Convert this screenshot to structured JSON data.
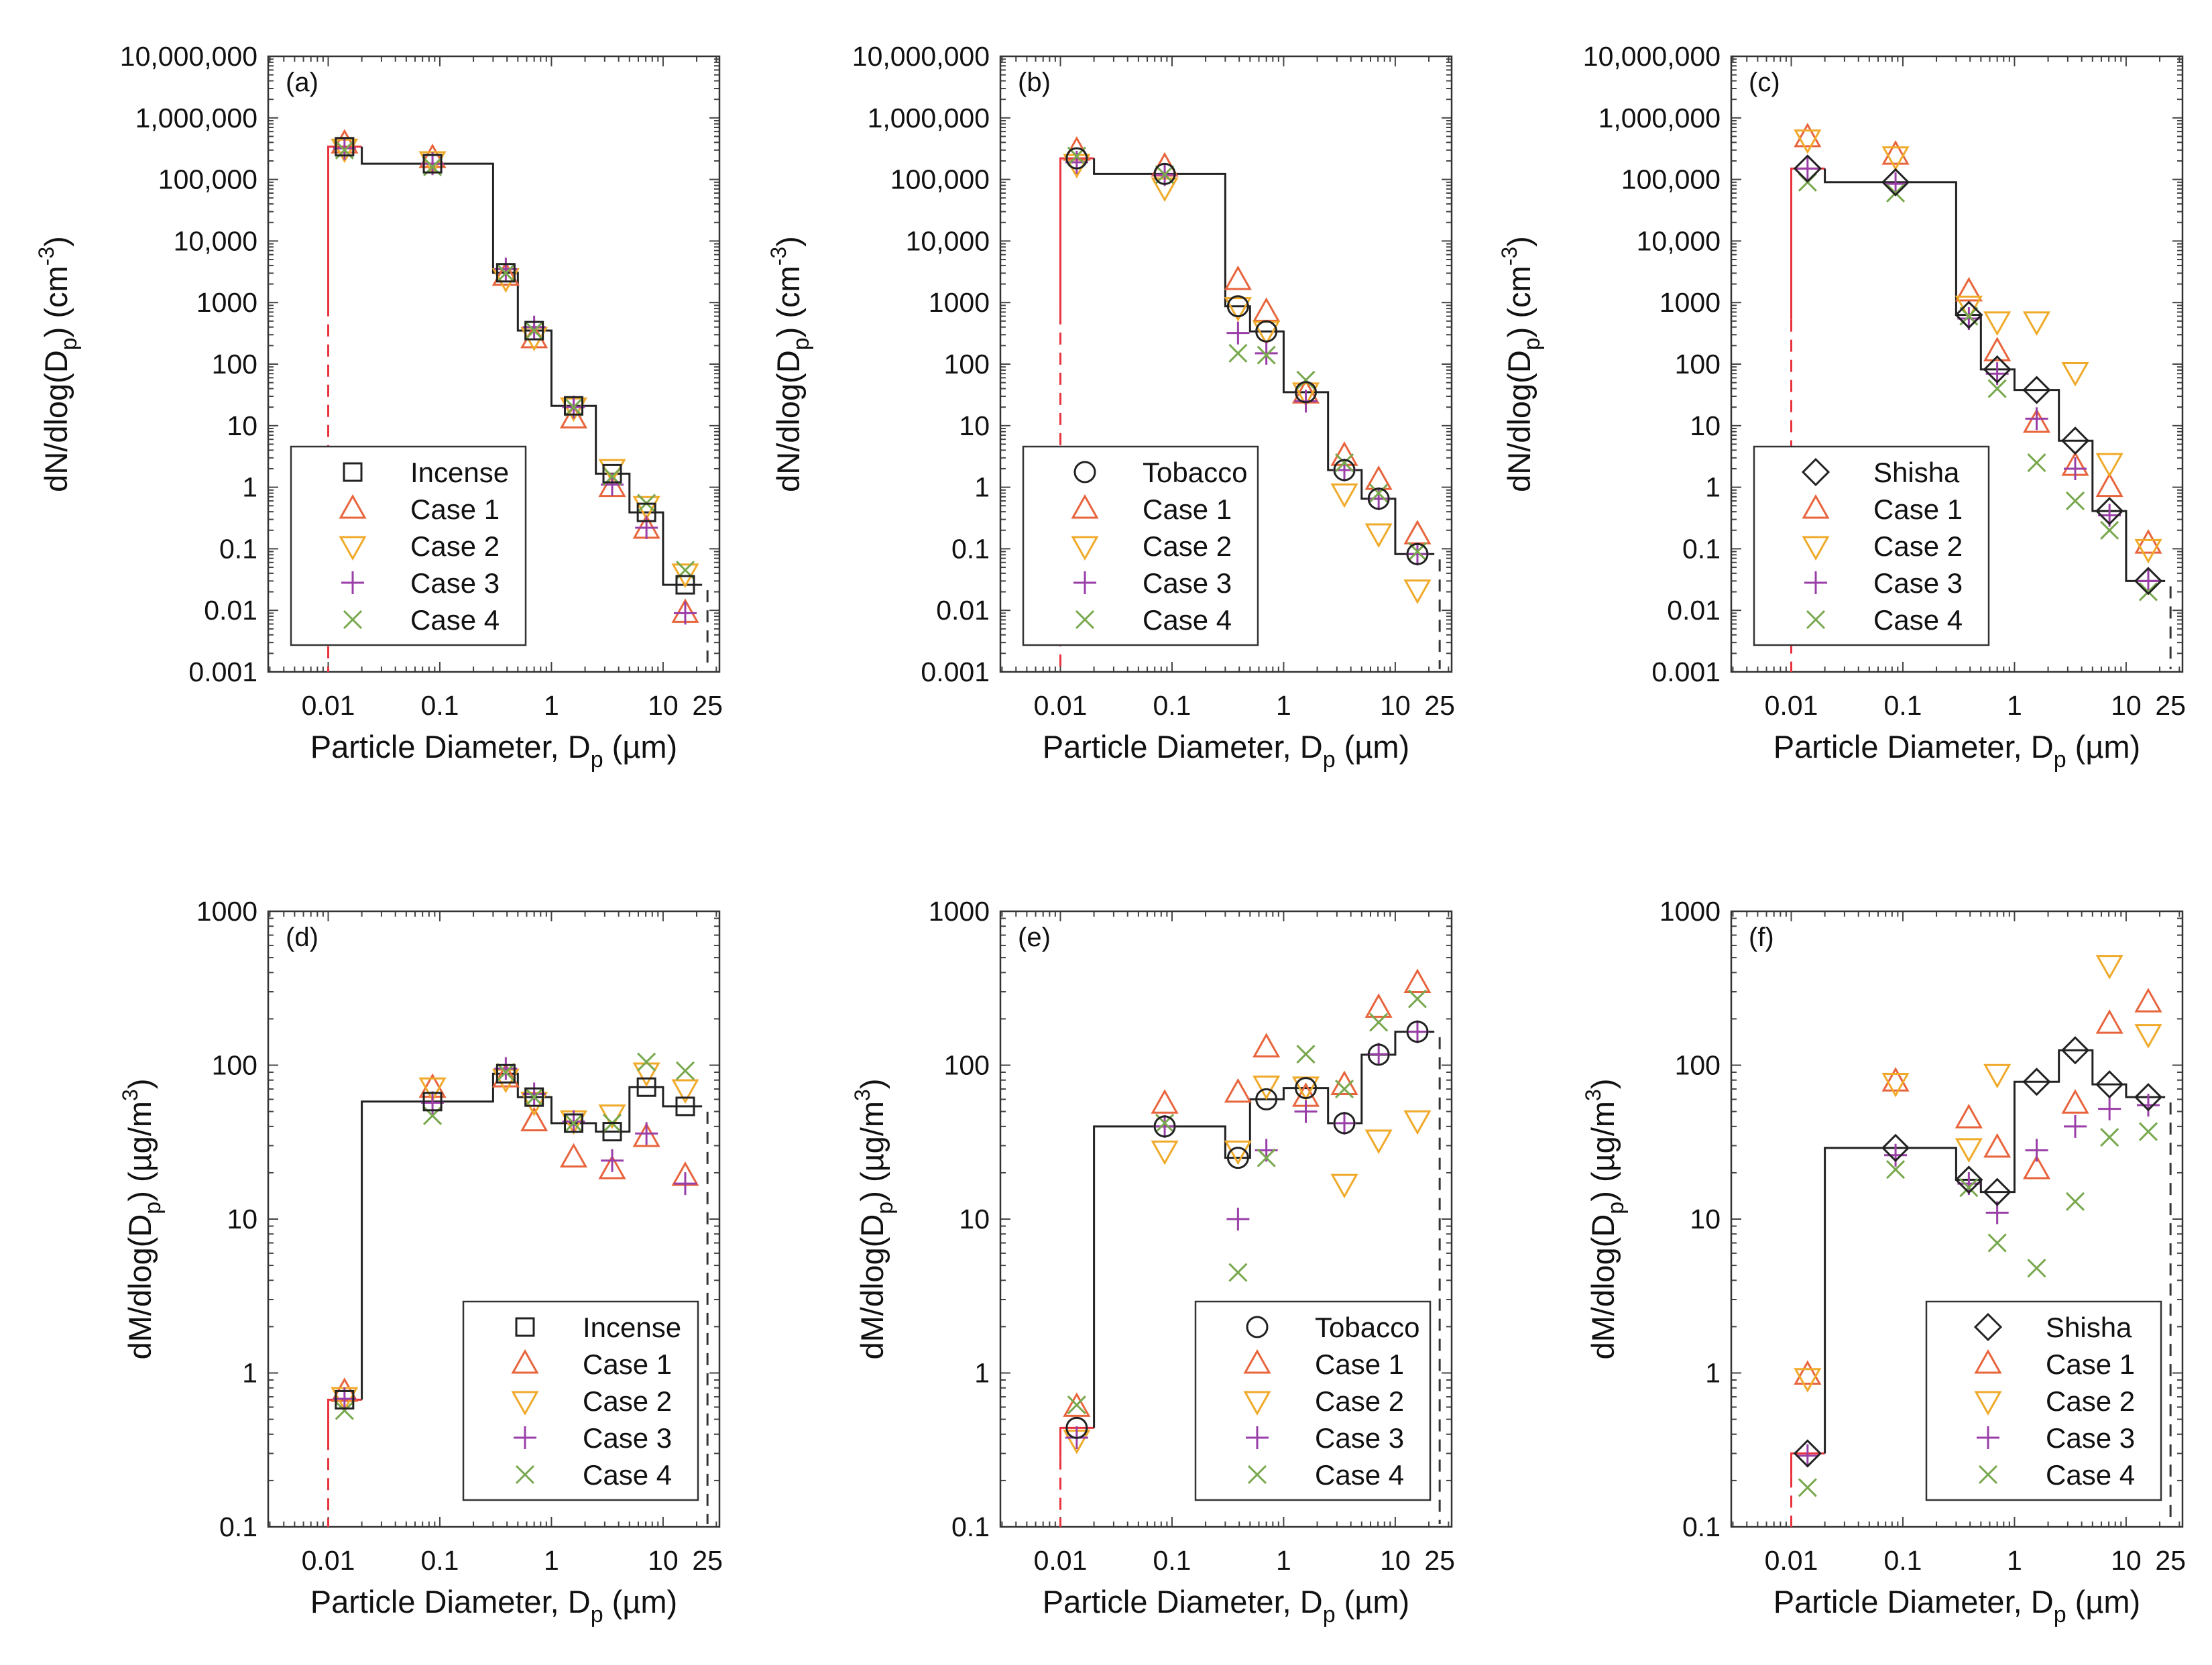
{
  "series_styles": {
    "reference_color": "#222222",
    "Case 1": {
      "marker": "triangle-up",
      "color": "#e8643c"
    },
    "Case 2": {
      "marker": "triangle-down",
      "color": "#f0aa2a"
    },
    "Case 3": {
      "marker": "plus",
      "color": "#9a3ea8"
    },
    "Case 4": {
      "marker": "x",
      "color": "#78a84e"
    },
    "first_bin_color": "#e8333d"
  },
  "chart_data": [
    {
      "panel": "(a)",
      "type": "scatter",
      "quantity": "number",
      "ylabel": {
        "a": "dN/dlog(D",
        "sub": "p",
        "b": ") (cm",
        "sup": "-3",
        "c": ")"
      },
      "xlabel": {
        "a": "Particle Diameter, D",
        "sub": "p",
        "b": " (µm)"
      },
      "xlim": [
        0.0029,
        32
      ],
      "ylim": [
        0.001,
        10000000
      ],
      "xticks": [
        {
          "v": 0.01,
          "label": "0.01"
        },
        {
          "v": 0.1,
          "label": "0.1"
        },
        {
          "v": 1,
          "label": "1"
        },
        {
          "v": 10,
          "label": "10"
        },
        {
          "v": 25,
          "label": "25"
        }
      ],
      "yticks": [
        {
          "v": 10000000,
          "label": "10,000,000"
        },
        {
          "v": 1000000,
          "label": "1,000,000"
        },
        {
          "v": 100000,
          "label": "100,000"
        },
        {
          "v": 10000,
          "label": "10,000"
        },
        {
          "v": 1000,
          "label": "1000"
        },
        {
          "v": 100,
          "label": "100"
        },
        {
          "v": 10,
          "label": "10"
        },
        {
          "v": 1,
          "label": "1"
        },
        {
          "v": 0.1,
          "label": "0.1"
        },
        {
          "v": 0.01,
          "label": "0.01"
        },
        {
          "v": 0.001,
          "label": "0.001"
        }
      ],
      "bin_edges": [
        0.01,
        0.02,
        0.3,
        0.5,
        1,
        2.5,
        5,
        10,
        25
      ],
      "x": [
        0.014,
        0.086,
        0.39,
        0.7,
        1.58,
        3.5,
        7.1,
        15.8
      ],
      "legend": "bottom-left",
      "series": [
        {
          "name": "Incense",
          "marker": "square",
          "values": [
            340000,
            180000,
            3050,
            350,
            21,
            1.66,
            0.39,
            0.026
          ]
        },
        {
          "name": "Case 1",
          "values": [
            380000,
            220000,
            2700,
            260,
            13,
            1.0,
            0.21,
            0.009
          ]
        },
        {
          "name": "Case 2",
          "values": [
            320000,
            200000,
            2500,
            280,
            20,
            2.0,
            0.5,
            0.04
          ]
        },
        {
          "name": "Case 3",
          "values": [
            320000,
            180000,
            3500,
            400,
            20,
            1.1,
            0.22,
            0.009
          ]
        },
        {
          "name": "Case 4",
          "values": [
            300000,
            160000,
            3000,
            350,
            20,
            1.5,
            0.55,
            0.045
          ]
        }
      ]
    },
    {
      "panel": "(b)",
      "type": "scatter",
      "quantity": "number",
      "ylabel": {
        "a": "dN/dlog(D",
        "sub": "p",
        "b": ") (cm",
        "sup": "-3",
        "c": ")"
      },
      "xlabel": {
        "a": "Particle Diameter, D",
        "sub": "p",
        "b": " (µm)"
      },
      "xlim": [
        0.0029,
        32
      ],
      "ylim": [
        0.001,
        10000000
      ],
      "xticks": [
        {
          "v": 0.01,
          "label": "0.01"
        },
        {
          "v": 0.1,
          "label": "0.1"
        },
        {
          "v": 1,
          "label": "1"
        },
        {
          "v": 10,
          "label": "10"
        },
        {
          "v": 25,
          "label": "25"
        }
      ],
      "yticks": [
        {
          "v": 10000000,
          "label": "10,000,000"
        },
        {
          "v": 1000000,
          "label": "1,000,000"
        },
        {
          "v": 100000,
          "label": "100,000"
        },
        {
          "v": 10000,
          "label": "10,000"
        },
        {
          "v": 1000,
          "label": "1000"
        },
        {
          "v": 100,
          "label": "100"
        },
        {
          "v": 10,
          "label": "10"
        },
        {
          "v": 1,
          "label": "1"
        },
        {
          "v": 0.1,
          "label": "0.1"
        },
        {
          "v": 0.01,
          "label": "0.01"
        },
        {
          "v": 0.001,
          "label": "0.001"
        }
      ],
      "bin_edges": [
        0.01,
        0.02,
        0.3,
        0.5,
        1,
        2.5,
        5,
        10,
        25
      ],
      "x": [
        0.014,
        0.086,
        0.39,
        0.7,
        1.58,
        3.5,
        7.1,
        15.8
      ],
      "legend": "bottom-left",
      "series": [
        {
          "name": "Tobacco",
          "marker": "circle",
          "values": [
            220000,
            123000,
            870,
            340,
            35,
            1.9,
            0.65,
            0.082
          ]
        },
        {
          "name": "Case 1",
          "values": [
            290000,
            160000,
            2300,
            700,
            33,
            3.2,
            1.3,
            0.17
          ]
        },
        {
          "name": "Case 2",
          "values": [
            180000,
            75000,
            850,
            350,
            35,
            0.8,
            0.18,
            0.022
          ]
        },
        {
          "name": "Case 3",
          "values": [
            190000,
            120000,
            320,
            150,
            25,
            1.9,
            0.65,
            0.082
          ]
        },
        {
          "name": "Case 4",
          "values": [
            240000,
            120000,
            150,
            140,
            55,
            2.5,
            0.8,
            0.09
          ]
        }
      ]
    },
    {
      "panel": "(c)",
      "type": "scatter",
      "quantity": "number",
      "ylabel": {
        "a": "dN/dlog(D",
        "sub": "p",
        "b": ") (cm",
        "sup": "-3",
        "c": ")"
      },
      "xlabel": {
        "a": "Particle Diameter, D",
        "sub": "p",
        "b": " (µm)"
      },
      "xlim": [
        0.0029,
        32
      ],
      "ylim": [
        0.001,
        10000000
      ],
      "xticks": [
        {
          "v": 0.01,
          "label": "0.01"
        },
        {
          "v": 0.1,
          "label": "0.1"
        },
        {
          "v": 1,
          "label": "1"
        },
        {
          "v": 10,
          "label": "10"
        },
        {
          "v": 25,
          "label": "25"
        }
      ],
      "yticks": [
        {
          "v": 10000000,
          "label": "10,000,000"
        },
        {
          "v": 1000000,
          "label": "1,000,000"
        },
        {
          "v": 100000,
          "label": "100,000"
        },
        {
          "v": 10000,
          "label": "10,000"
        },
        {
          "v": 1000,
          "label": "1000"
        },
        {
          "v": 100,
          "label": "100"
        },
        {
          "v": 10,
          "label": "10"
        },
        {
          "v": 1,
          "label": "1"
        },
        {
          "v": 0.1,
          "label": "0.1"
        },
        {
          "v": 0.01,
          "label": "0.01"
        },
        {
          "v": 0.001,
          "label": "0.001"
        }
      ],
      "bin_edges": [
        0.01,
        0.02,
        0.3,
        0.5,
        1,
        2.5,
        5,
        10,
        25
      ],
      "x": [
        0.014,
        0.086,
        0.39,
        0.7,
        1.58,
        3.5,
        7.1,
        15.8
      ],
      "legend": "bottom-left",
      "series": [
        {
          "name": "Shisha",
          "marker": "diamond",
          "values": [
            150000,
            90000,
            630,
            82,
            38,
            5.7,
            0.41,
            0.03
          ]
        },
        {
          "name": "Case 1",
          "values": [
            480000,
            250000,
            1500,
            160,
            11,
            2.2,
            1.0,
            0.12
          ]
        },
        {
          "name": "Case 2",
          "values": [
            450000,
            240000,
            900,
            500,
            500,
            75,
            2.5,
            0.1
          ]
        },
        {
          "name": "Case 3",
          "values": [
            150000,
            85000,
            550,
            70,
            13,
            2.0,
            0.35,
            0.03
          ]
        },
        {
          "name": "Case 4",
          "values": [
            90000,
            60000,
            600,
            40,
            2.5,
            0.6,
            0.2,
            0.02
          ]
        }
      ]
    },
    {
      "panel": "(d)",
      "type": "scatter",
      "quantity": "mass",
      "ylabel": {
        "a": "dM/dlog(D",
        "sub": "p",
        "b": ") (µg/m",
        "sup": "3",
        "c": ")"
      },
      "xlabel": {
        "a": "Particle Diameter, D",
        "sub": "p",
        "b": " (µm)"
      },
      "xlim": [
        0.0029,
        32
      ],
      "ylim": [
        0.1,
        1000
      ],
      "xticks": [
        {
          "v": 0.01,
          "label": "0.01"
        },
        {
          "v": 0.1,
          "label": "0.1"
        },
        {
          "v": 1,
          "label": "1"
        },
        {
          "v": 10,
          "label": "10"
        },
        {
          "v": 25,
          "label": "25"
        }
      ],
      "yticks": [
        {
          "v": 1000,
          "label": "1000"
        },
        {
          "v": 100,
          "label": "100"
        },
        {
          "v": 10,
          "label": "10"
        },
        {
          "v": 1,
          "label": "1"
        },
        {
          "v": 0.1,
          "label": "0.1"
        }
      ],
      "bin_edges": [
        0.01,
        0.02,
        0.3,
        0.5,
        1,
        2.5,
        5,
        10,
        25
      ],
      "x": [
        0.014,
        0.086,
        0.39,
        0.7,
        1.58,
        3.5,
        7.1,
        15.8
      ],
      "legend": "bottom-right",
      "series": [
        {
          "name": "Incense",
          "marker": "square",
          "values": [
            0.67,
            58,
            88,
            62,
            42,
            37,
            72,
            54
          ]
        },
        {
          "name": "Case 1",
          "values": [
            0.75,
            71,
            83,
            43,
            25,
            21,
            34,
            19
          ]
        },
        {
          "name": "Case 2",
          "values": [
            0.7,
            72,
            82,
            58,
            44,
            48,
            90,
            70
          ]
        },
        {
          "name": "Case 3",
          "values": [
            0.68,
            57,
            95,
            65,
            43,
            24,
            36,
            17
          ]
        },
        {
          "name": "Case 4",
          "values": [
            0.57,
            47,
            90,
            62,
            42,
            42,
            105,
            92
          ]
        }
      ]
    },
    {
      "panel": "(e)",
      "type": "scatter",
      "quantity": "mass",
      "ylabel": {
        "a": "dM/dlog(D",
        "sub": "p",
        "b": ") (µg/m",
        "sup": "3",
        "c": ")"
      },
      "xlabel": {
        "a": "Particle Diameter, D",
        "sub": "p",
        "b": " (µm)"
      },
      "xlim": [
        0.0029,
        32
      ],
      "ylim": [
        0.1,
        1000
      ],
      "xticks": [
        {
          "v": 0.01,
          "label": "0.01"
        },
        {
          "v": 0.1,
          "label": "0.1"
        },
        {
          "v": 1,
          "label": "1"
        },
        {
          "v": 10,
          "label": "10"
        },
        {
          "v": 25,
          "label": "25"
        }
      ],
      "yticks": [
        {
          "v": 1000,
          "label": "1000"
        },
        {
          "v": 100,
          "label": "100"
        },
        {
          "v": 10,
          "label": "10"
        },
        {
          "v": 1,
          "label": "1"
        },
        {
          "v": 0.1,
          "label": "0.1"
        }
      ],
      "bin_edges": [
        0.01,
        0.02,
        0.3,
        0.5,
        1,
        2.5,
        5,
        10,
        25
      ],
      "x": [
        0.014,
        0.086,
        0.39,
        0.7,
        1.58,
        3.5,
        7.1,
        15.8
      ],
      "legend": "bottom-right",
      "series": [
        {
          "name": "Tobacco",
          "marker": "circle",
          "values": [
            0.44,
            40,
            25,
            60,
            71,
            42,
            117,
            165
          ]
        },
        {
          "name": "Case 1",
          "values": [
            0.6,
            56,
            66,
            130,
            62,
            74,
            235,
            340
          ]
        },
        {
          "name": "Case 2",
          "values": [
            0.37,
            28,
            28,
            74,
            73,
            17,
            33,
            44
          ]
        },
        {
          "name": "Case 3",
          "values": [
            0.38,
            40,
            10,
            28,
            50,
            42,
            118,
            165
          ]
        },
        {
          "name": "Case 4",
          "values": [
            0.62,
            42,
            4.5,
            25,
            118,
            70,
            190,
            270
          ]
        }
      ]
    },
    {
      "panel": "(f)",
      "type": "scatter",
      "quantity": "mass",
      "ylabel": {
        "a": "dM/dlog(D",
        "sub": "p",
        "b": ") (µg/m",
        "sup": "3",
        "c": ")"
      },
      "xlabel": {
        "a": "Particle Diameter, D",
        "sub": "p",
        "b": " (µm)"
      },
      "xlim": [
        0.0029,
        32
      ],
      "ylim": [
        0.1,
        1000
      ],
      "xticks": [
        {
          "v": 0.01,
          "label": "0.01"
        },
        {
          "v": 0.1,
          "label": "0.1"
        },
        {
          "v": 1,
          "label": "1"
        },
        {
          "v": 10,
          "label": "10"
        },
        {
          "v": 25,
          "label": "25"
        }
      ],
      "yticks": [
        {
          "v": 1000,
          "label": "1000"
        },
        {
          "v": 100,
          "label": "100"
        },
        {
          "v": 10,
          "label": "10"
        },
        {
          "v": 1,
          "label": "1"
        },
        {
          "v": 0.1,
          "label": "0.1"
        }
      ],
      "bin_edges": [
        0.01,
        0.02,
        0.3,
        0.5,
        1,
        2.5,
        5,
        10,
        25
      ],
      "x": [
        0.014,
        0.086,
        0.39,
        0.7,
        1.58,
        3.5,
        7.1,
        15.8
      ],
      "legend": "bottom-right",
      "series": [
        {
          "name": "Shisha",
          "marker": "diamond",
          "values": [
            0.3,
            29,
            18,
            15,
            78,
            125,
            75,
            62
          ]
        },
        {
          "name": "Case 1",
          "values": [
            0.97,
            78,
            45,
            29,
            21,
            56,
            185,
            255
          ]
        },
        {
          "name": "Case 2",
          "values": [
            0.93,
            77,
            29,
            88,
            null,
            null,
            450,
            160
          ]
        },
        {
          "name": "Case 3",
          "values": [
            0.29,
            26,
            17,
            11,
            28,
            40,
            52,
            55
          ]
        },
        {
          "name": "Case 4",
          "values": [
            0.18,
            21,
            16,
            7,
            4.8,
            13,
            34,
            37
          ]
        }
      ]
    }
  ]
}
